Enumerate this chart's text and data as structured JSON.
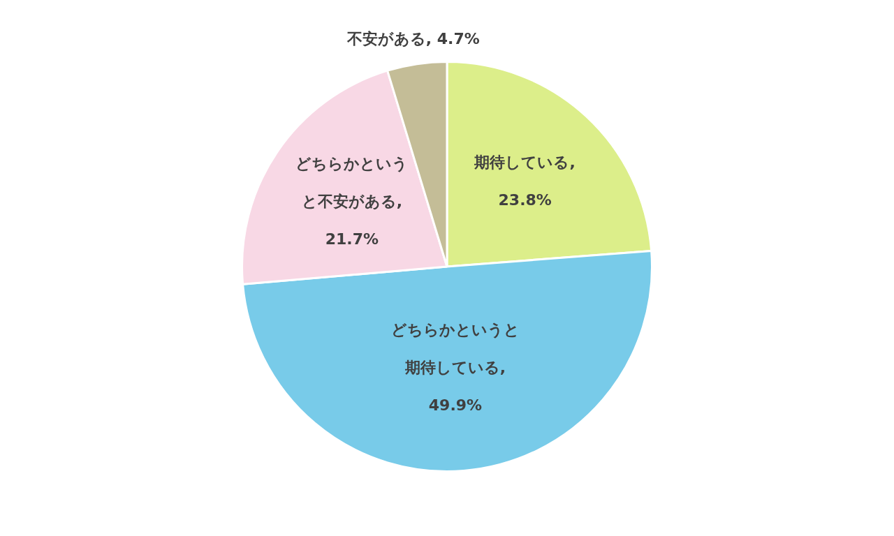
{
  "chart_data": {
    "type": "pie",
    "categories": [
      "期待している",
      "どちらかというと期待している",
      "どちらかというと不安がある",
      "不安がある"
    ],
    "values": [
      23.8,
      49.9,
      21.7,
      4.7
    ],
    "colors": [
      "#dcee8a",
      "#78cbe9",
      "#f8d8e5",
      "#c4bd97"
    ],
    "value_labels": [
      ", 23.8%",
      ", 49.9%",
      ", 21.7%",
      ", 4.7%"
    ],
    "legend": false
  }
}
